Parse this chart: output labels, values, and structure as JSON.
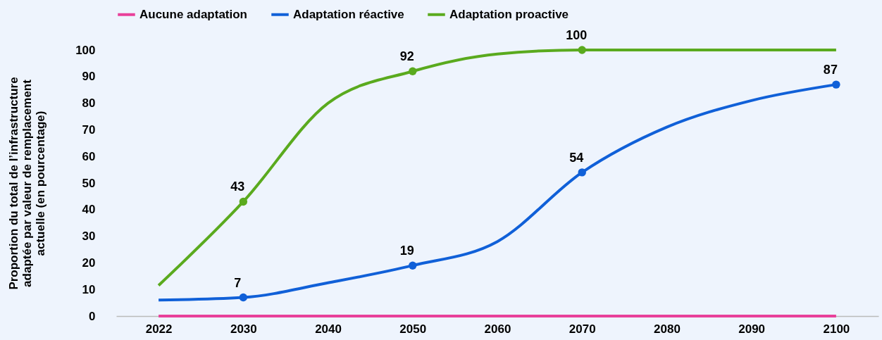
{
  "chart_data": {
    "type": "line",
    "ylabel": "Proportion du total de l’infrastructure adaptée par valeur de remplacement actuelle (en pourcentage)",
    "categories": [
      "2022",
      "2030",
      "2040",
      "2050",
      "2060",
      "2070",
      "2080",
      "2090",
      "2100"
    ],
    "series": [
      {
        "name": "Aucune adaptation",
        "color": "#e8409a",
        "values": [
          0,
          0,
          0,
          0,
          0,
          0,
          0,
          0,
          0
        ],
        "value_labels": [
          null,
          null,
          null,
          null,
          null,
          null,
          null,
          null,
          null
        ]
      },
      {
        "name": "Adaptation réactive",
        "color": "#1060d8",
        "values": [
          6,
          7,
          12.5,
          19,
          28,
          54,
          71,
          81,
          87
        ],
        "value_labels": [
          null,
          "7",
          null,
          "19",
          null,
          "54",
          null,
          null,
          "87"
        ]
      },
      {
        "name": "Adaptation proactive",
        "color": "#5aaa1e",
        "values": [
          11.5,
          43,
          80,
          92,
          98.5,
          100,
          100,
          100,
          100
        ],
        "value_labels": [
          null,
          "43",
          null,
          "92",
          null,
          "100",
          null,
          null,
          null
        ]
      }
    ],
    "ylim": [
      0,
      100
    ],
    "yticks": [
      0,
      10,
      20,
      30,
      40,
      50,
      60,
      70,
      80,
      90,
      100
    ],
    "grid": false,
    "legend": "top",
    "line_style": "solid"
  }
}
